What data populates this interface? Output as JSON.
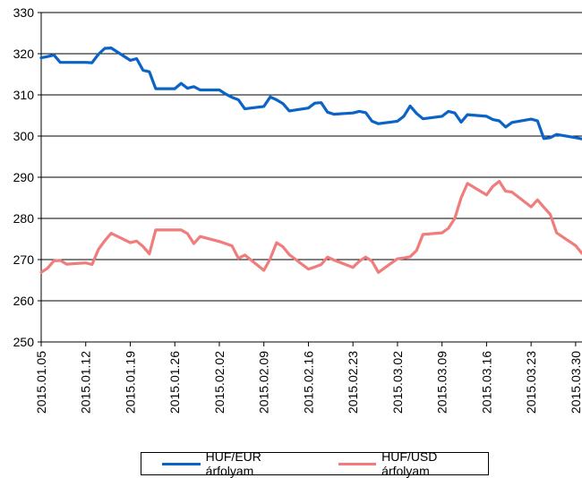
{
  "chart_data": {
    "type": "line",
    "title": "",
    "ylim": [
      250,
      330
    ],
    "yticks": [
      "250",
      "260",
      "270",
      "280",
      "290",
      "300",
      "310",
      "320",
      "330"
    ],
    "xlim": [
      "2015.01.05",
      "2015.03.31"
    ],
    "xticks": [
      "2015.01.05",
      "2015.01.12",
      "2015.01.19",
      "2015.01.26",
      "2015.02.02",
      "2015.02.09",
      "2015.02.16",
      "2015.02.23",
      "2015.03.02",
      "2015.03.09",
      "2015.03.16",
      "2015.03.23",
      "2015.03.30"
    ],
    "grid": "horizontal",
    "legend_position": "bottom",
    "series": [
      {
        "name": "HUF/EUR árfolyam",
        "color": "#0b63c6",
        "points": [
          [
            "2015.01.05",
            319.0
          ],
          [
            "2015.01.06",
            319.3
          ],
          [
            "2015.01.07",
            319.7
          ],
          [
            "2015.01.08",
            317.9
          ],
          [
            "2015.01.09",
            317.9
          ],
          [
            "2015.01.12",
            317.9
          ],
          [
            "2015.01.13",
            317.8
          ],
          [
            "2015.01.14",
            319.9
          ],
          [
            "2015.01.15",
            321.3
          ],
          [
            "2015.01.16",
            321.4
          ],
          [
            "2015.01.19",
            318.4
          ],
          [
            "2015.01.20",
            318.8
          ],
          [
            "2015.01.21",
            316.0
          ],
          [
            "2015.01.22",
            315.6
          ],
          [
            "2015.01.23",
            311.5
          ],
          [
            "2015.01.26",
            311.5
          ],
          [
            "2015.01.27",
            312.8
          ],
          [
            "2015.01.28",
            311.6
          ],
          [
            "2015.01.29",
            312.0
          ],
          [
            "2015.01.30",
            311.2
          ],
          [
            "2015.02.02",
            311.2
          ],
          [
            "2015.02.03",
            310.2
          ],
          [
            "2015.02.04",
            309.4
          ],
          [
            "2015.02.05",
            308.8
          ],
          [
            "2015.02.06",
            306.6
          ],
          [
            "2015.02.09",
            307.2
          ],
          [
            "2015.02.10",
            309.5
          ],
          [
            "2015.02.11",
            308.8
          ],
          [
            "2015.02.12",
            307.9
          ],
          [
            "2015.02.13",
            306.1
          ],
          [
            "2015.02.16",
            306.8
          ],
          [
            "2015.02.17",
            308.0
          ],
          [
            "2015.02.18",
            308.1
          ],
          [
            "2015.02.19",
            305.8
          ],
          [
            "2015.02.20",
            305.3
          ],
          [
            "2015.02.23",
            305.6
          ],
          [
            "2015.02.24",
            306.0
          ],
          [
            "2015.02.25",
            305.7
          ],
          [
            "2015.02.26",
            303.6
          ],
          [
            "2015.02.27",
            303.0
          ],
          [
            "2015.03.02",
            303.6
          ],
          [
            "2015.03.03",
            304.8
          ],
          [
            "2015.03.04",
            307.3
          ],
          [
            "2015.03.05",
            305.5
          ],
          [
            "2015.03.06",
            304.2
          ],
          [
            "2015.03.09",
            304.8
          ],
          [
            "2015.03.10",
            306.0
          ],
          [
            "2015.03.11",
            305.6
          ],
          [
            "2015.03.12",
            303.4
          ],
          [
            "2015.03.13",
            305.2
          ],
          [
            "2015.03.16",
            304.8
          ],
          [
            "2015.03.17",
            304.0
          ],
          [
            "2015.03.18",
            303.7
          ],
          [
            "2015.03.19",
            302.2
          ],
          [
            "2015.03.20",
            303.3
          ],
          [
            "2015.03.23",
            304.1
          ],
          [
            "2015.03.24",
            303.7
          ],
          [
            "2015.03.25",
            299.4
          ],
          [
            "2015.03.26",
            299.6
          ],
          [
            "2015.03.27",
            300.4
          ],
          [
            "2015.03.30",
            299.6
          ],
          [
            "2015.03.31",
            299.3
          ]
        ]
      },
      {
        "name": "HUF/USD árfolyam",
        "color": "#f07c7c",
        "points": [
          [
            "2015.01.05",
            266.9
          ],
          [
            "2015.01.06",
            267.9
          ],
          [
            "2015.01.07",
            269.7
          ],
          [
            "2015.01.08",
            269.8
          ],
          [
            "2015.01.09",
            268.9
          ],
          [
            "2015.01.12",
            269.2
          ],
          [
            "2015.01.13",
            268.8
          ],
          [
            "2015.01.14",
            272.5
          ],
          [
            "2015.01.15",
            274.6
          ],
          [
            "2015.01.16",
            276.4
          ],
          [
            "2015.01.19",
            274.1
          ],
          [
            "2015.01.20",
            274.5
          ],
          [
            "2015.01.21",
            273.2
          ],
          [
            "2015.01.22",
            271.4
          ],
          [
            "2015.01.23",
            277.2
          ],
          [
            "2015.01.26",
            277.2
          ],
          [
            "2015.01.27",
            277.2
          ],
          [
            "2015.01.28",
            276.3
          ],
          [
            "2015.01.29",
            273.9
          ],
          [
            "2015.01.30",
            275.6
          ],
          [
            "2015.02.02",
            274.4
          ],
          [
            "2015.02.03",
            273.9
          ],
          [
            "2015.02.04",
            273.3
          ],
          [
            "2015.02.05",
            270.3
          ],
          [
            "2015.02.06",
            271.1
          ],
          [
            "2015.02.09",
            267.4
          ],
          [
            "2015.02.10",
            270.2
          ],
          [
            "2015.02.11",
            274.1
          ],
          [
            "2015.02.12",
            273.1
          ],
          [
            "2015.02.13",
            271.2
          ],
          [
            "2015.02.16",
            267.7
          ],
          [
            "2015.02.17",
            268.2
          ],
          [
            "2015.02.18",
            268.8
          ],
          [
            "2015.02.19",
            270.6
          ],
          [
            "2015.02.20",
            269.9
          ],
          [
            "2015.02.23",
            268.1
          ],
          [
            "2015.02.24",
            269.6
          ],
          [
            "2015.02.25",
            270.6
          ],
          [
            "2015.02.26",
            269.6
          ],
          [
            "2015.02.27",
            266.9
          ],
          [
            "2015.03.02",
            270.2
          ],
          [
            "2015.03.03",
            270.4
          ],
          [
            "2015.03.04",
            270.7
          ],
          [
            "2015.03.05",
            272.2
          ],
          [
            "2015.03.06",
            276.1
          ],
          [
            "2015.03.09",
            276.5
          ],
          [
            "2015.03.10",
            277.6
          ],
          [
            "2015.03.11",
            280.0
          ],
          [
            "2015.03.12",
            285.0
          ],
          [
            "2015.03.13",
            288.5
          ],
          [
            "2015.03.16",
            285.7
          ],
          [
            "2015.03.17",
            287.8
          ],
          [
            "2015.03.18",
            289.0
          ],
          [
            "2015.03.19",
            286.6
          ],
          [
            "2015.03.20",
            286.4
          ],
          [
            "2015.03.23",
            282.8
          ],
          [
            "2015.03.24",
            284.5
          ],
          [
            "2015.03.25",
            282.7
          ],
          [
            "2015.03.26",
            281.0
          ],
          [
            "2015.03.27",
            276.5
          ],
          [
            "2015.03.30",
            273.4
          ],
          [
            "2015.03.31",
            271.5
          ]
        ]
      }
    ]
  }
}
